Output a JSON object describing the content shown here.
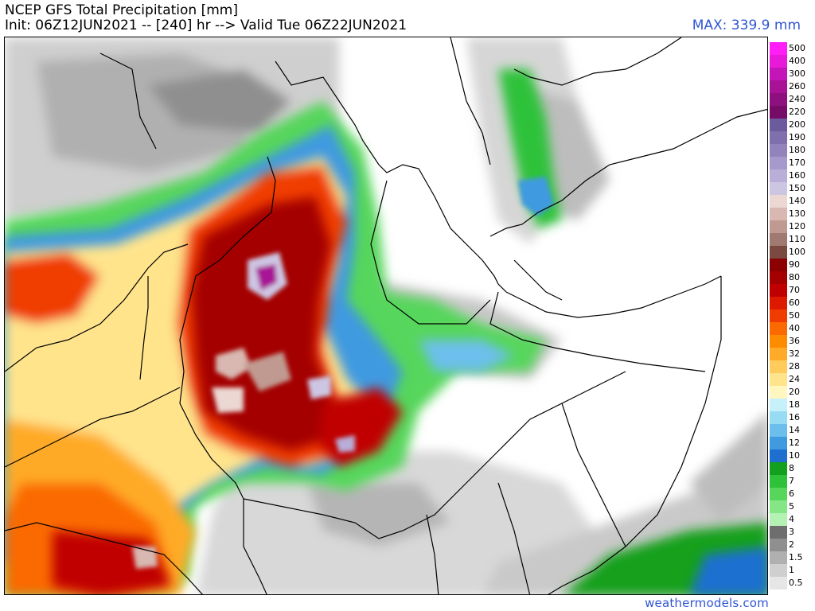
{
  "title": "NCEP GFS Total Precipitation [mm]",
  "subtitle": "Init: 06Z12JUN2021 -- [240] hr --> Valid Tue 06Z22JUN2021",
  "max_label": "MAX: 339.9 mm",
  "watermark": "weathermodels.com",
  "colorbar": {
    "levels": [
      {
        "label": "500",
        "color": "#ff1ef5"
      },
      {
        "label": "400",
        "color": "#e61ad8"
      },
      {
        "label": "300",
        "color": "#c416b8"
      },
      {
        "label": "260",
        "color": "#a81296"
      },
      {
        "label": "240",
        "color": "#8e0f7e"
      },
      {
        "label": "220",
        "color": "#760b68"
      },
      {
        "label": "200",
        "color": "#6b5a9c"
      },
      {
        "label": "190",
        "color": "#7f70ad"
      },
      {
        "label": "180",
        "color": "#9283bd"
      },
      {
        "label": "170",
        "color": "#a699cc"
      },
      {
        "label": "160",
        "color": "#b8aed8"
      },
      {
        "label": "150",
        "color": "#cdc6e3"
      },
      {
        "label": "140",
        "color": "#ecd8d3"
      },
      {
        "label": "130",
        "color": "#d8b8b0"
      },
      {
        "label": "120",
        "color": "#c09a90"
      },
      {
        "label": "110",
        "color": "#a07a70"
      },
      {
        "label": "100",
        "color": "#7a4a40"
      },
      {
        "label": "90",
        "color": "#8b0000"
      },
      {
        "label": "80",
        "color": "#a40000"
      },
      {
        "label": "70",
        "color": "#c00000"
      },
      {
        "label": "60",
        "color": "#dd1a00"
      },
      {
        "label": "50",
        "color": "#f03c00"
      },
      {
        "label": "40",
        "color": "#fa6a00"
      },
      {
        "label": "36",
        "color": "#fd8c00"
      },
      {
        "label": "32",
        "color": "#ffaa28"
      },
      {
        "label": "28",
        "color": "#ffcb5a"
      },
      {
        "label": "24",
        "color": "#ffe48c"
      },
      {
        "label": "20",
        "color": "#fff6c0"
      },
      {
        "label": "18",
        "color": "#c6f0fa"
      },
      {
        "label": "16",
        "color": "#98dcf4"
      },
      {
        "label": "14",
        "color": "#6cbfec"
      },
      {
        "label": "12",
        "color": "#3f9ae0"
      },
      {
        "label": "10",
        "color": "#1f6fd0"
      },
      {
        "label": "8",
        "color": "#13a01e"
      },
      {
        "label": "7",
        "color": "#2ec23a"
      },
      {
        "label": "6",
        "color": "#57d65c"
      },
      {
        "label": "5",
        "color": "#85e686"
      },
      {
        "label": "4",
        "color": "#b3f2b2"
      },
      {
        "label": "3",
        "color": "#6e6e6e"
      },
      {
        "label": "2",
        "color": "#8f8f8f"
      },
      {
        "label": "1.5",
        "color": "#b0b0b0"
      },
      {
        "label": "1",
        "color": "#cfcfcf"
      },
      {
        "label": "0.5",
        "color": "#e6e6e6"
      }
    ]
  }
}
